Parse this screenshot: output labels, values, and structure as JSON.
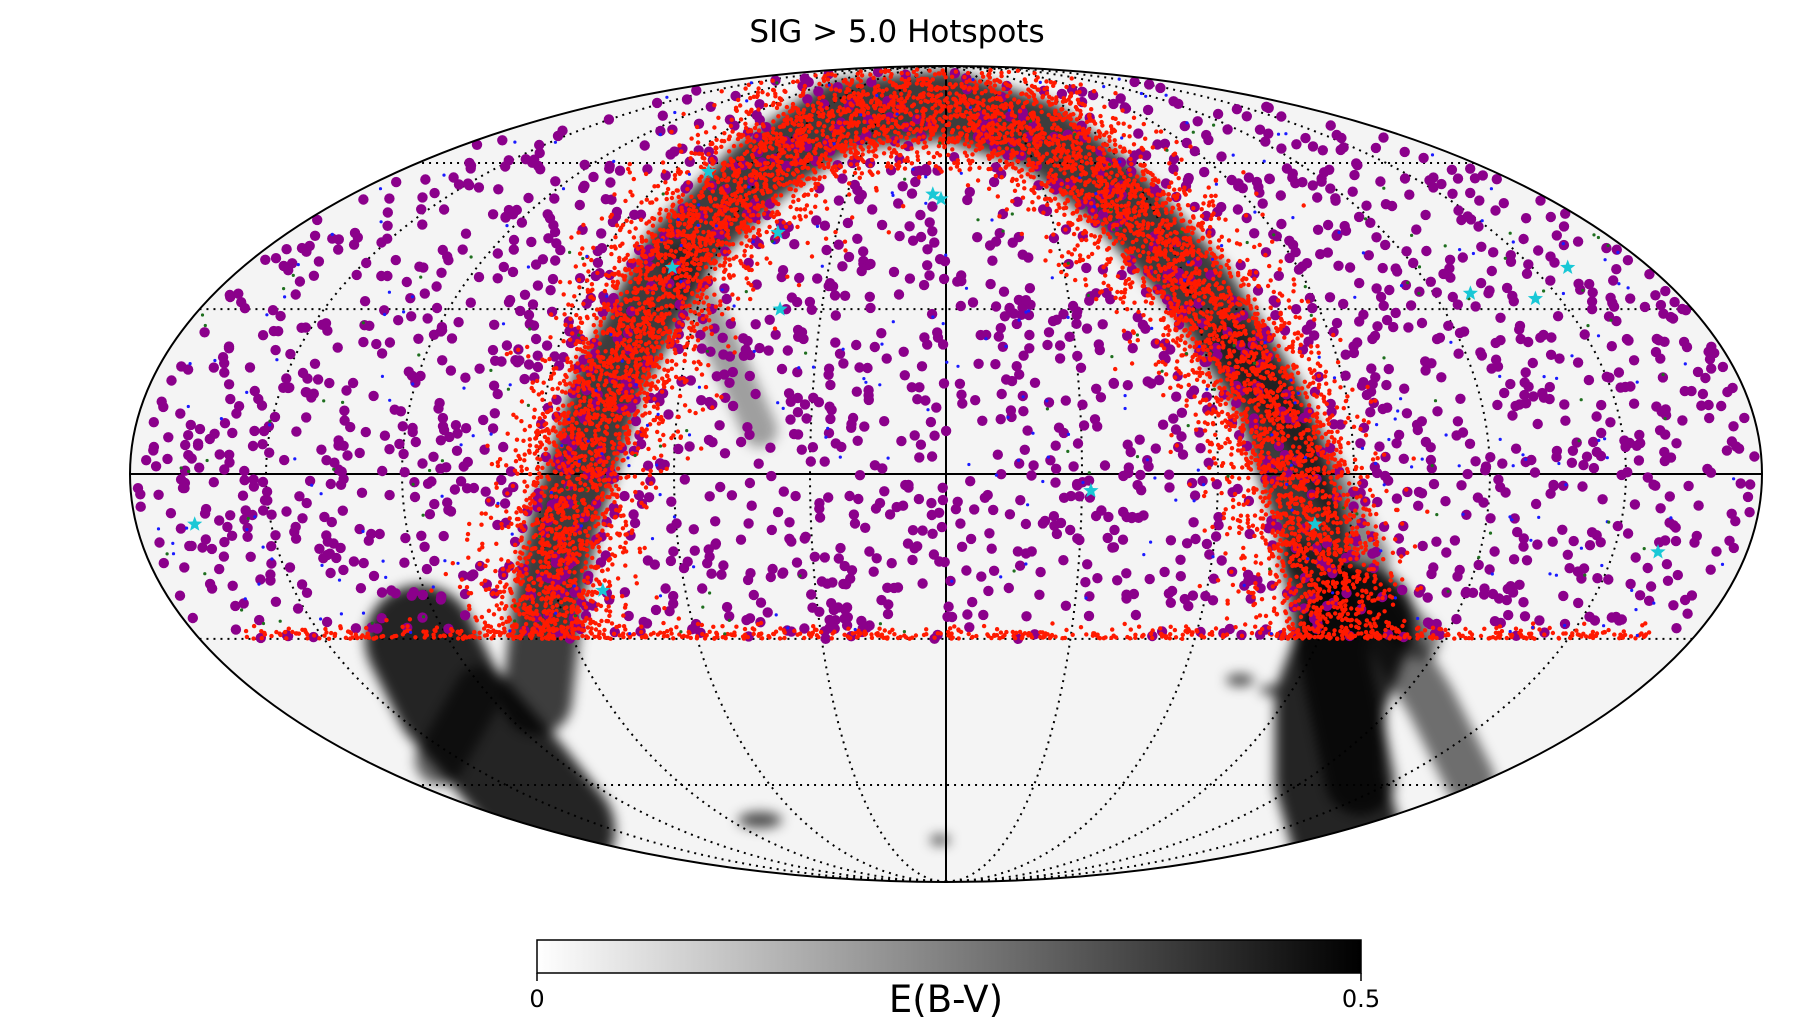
{
  "chart_data": {
    "type": "scatter",
    "projection": "mollweide",
    "title": "SIG > 5.0 Hotspots",
    "background_map": {
      "quantity": "E(B-V)",
      "colormap": "grayscale (white to black)",
      "range": [
        0,
        0.5
      ]
    },
    "grid": true,
    "graticule": {
      "longitude_step_deg": 30,
      "latitude_lines_deg": [
        60,
        30,
        -30,
        -60
      ],
      "equator_and_central_meridian": "solid",
      "other_lines": "dotted"
    },
    "sample_cutoff_latitude_deg": -30,
    "series": [
      {
        "marker": "large filled circle",
        "color": "#8b008b",
        "approx_count": 2200,
        "distribution": "roughly uniform over the sky north of latitude -30 deg"
      },
      {
        "marker": "small filled circle",
        "color": "#ff1a00",
        "approx_count": 9000,
        "distribution": "dense along the dusty band (arc), plus a row of points along latitude -30 deg"
      },
      {
        "marker": "tiny dot",
        "color": "#1a1aff",
        "approx_count": 300
      },
      {
        "marker": "tiny dot",
        "color": "#1e6e1e",
        "approx_count": 130
      },
      {
        "marker": "star",
        "color": "#19c8d6",
        "points": [
          [
            -159,
            38
          ],
          [
            -144,
            32
          ],
          [
            -129,
            33
          ],
          [
            -160,
            -14
          ],
          [
            -82,
            -9
          ],
          [
            -32,
            -3
          ],
          [
            1.5,
            52
          ],
          [
            4,
            53
          ],
          [
            40,
            30
          ],
          [
            46,
            45
          ],
          [
            70,
            38
          ],
          [
            78,
            58
          ],
          [
            79,
            -21
          ],
          [
            167,
            -9
          ]
        ]
      }
    ],
    "colorbar": {
      "label": "E(B-V)",
      "ticks": [
        "0",
        "0.5"
      ],
      "range": [
        0,
        0.5
      ],
      "cmap_colors": [
        "#ffffff",
        "#000000"
      ]
    }
  }
}
